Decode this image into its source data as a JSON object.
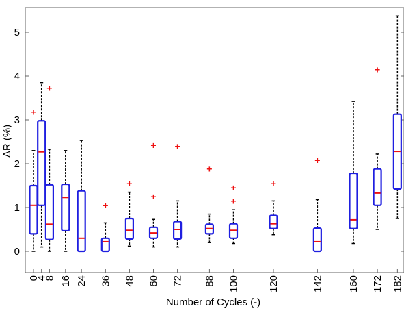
{
  "chart_data": {
    "type": "box",
    "title": "",
    "xlabel": "Number of Cycles (-)",
    "ylabel": "ΔR (%)",
    "ylim": [
      -0.55,
      5.6
    ],
    "yticks": [
      0,
      1,
      2,
      3,
      4,
      5
    ],
    "grid": false,
    "legend": "none",
    "colors": {
      "box": "#1f1fe0",
      "median": "#ee1111",
      "whisker": "#000000",
      "outlier": "#ee1111",
      "axes": "#666666"
    },
    "categories": [
      "0",
      "4",
      "8",
      "16",
      "24",
      "36",
      "48",
      "60",
      "72",
      "88",
      "100",
      "120",
      "142",
      "160",
      "172",
      "182"
    ],
    "boxes": [
      {
        "x": 0,
        "whisker_low": 0.0,
        "q1": 0.4,
        "median": 1.05,
        "q3": 1.5,
        "whisker_high": 2.3,
        "outliers": [
          3.18
        ]
      },
      {
        "x": 4,
        "whisker_low": 0.1,
        "q1": 1.05,
        "median": 2.27,
        "q3": 2.98,
        "whisker_high": 3.85,
        "outliers": []
      },
      {
        "x": 8,
        "whisker_low": 0.0,
        "q1": 0.27,
        "median": 0.62,
        "q3": 1.52,
        "whisker_high": 2.33,
        "outliers": [
          3.73
        ]
      },
      {
        "x": 16,
        "whisker_low": 0.0,
        "q1": 0.47,
        "median": 1.23,
        "q3": 1.53,
        "whisker_high": 2.3,
        "outliers": []
      },
      {
        "x": 24,
        "whisker_low": 0.0,
        "q1": 0.0,
        "median": 0.3,
        "q3": 1.38,
        "whisker_high": 2.53,
        "outliers": []
      },
      {
        "x": 36,
        "whisker_low": 0.0,
        "q1": 0.0,
        "median": 0.22,
        "q3": 0.3,
        "whisker_high": 0.65,
        "outliers": [
          1.05
        ]
      },
      {
        "x": 48,
        "whisker_low": 0.12,
        "q1": 0.28,
        "median": 0.48,
        "q3": 0.75,
        "whisker_high": 1.35,
        "outliers": [
          1.55
        ]
      },
      {
        "x": 60,
        "whisker_low": 0.1,
        "q1": 0.3,
        "median": 0.42,
        "q3": 0.55,
        "whisker_high": 0.73,
        "outliers": [
          1.25,
          2.42
        ]
      },
      {
        "x": 72,
        "whisker_low": 0.1,
        "q1": 0.28,
        "median": 0.5,
        "q3": 0.68,
        "whisker_high": 1.15,
        "outliers": [
          2.4
        ]
      },
      {
        "x": 88,
        "whisker_low": 0.2,
        "q1": 0.4,
        "median": 0.52,
        "q3": 0.62,
        "whisker_high": 0.85,
        "outliers": [
          1.88
        ]
      },
      {
        "x": 100,
        "whisker_low": 0.18,
        "q1": 0.3,
        "median": 0.48,
        "q3": 0.63,
        "whisker_high": 0.95,
        "outliers": [
          1.15,
          1.45
        ]
      },
      {
        "x": 120,
        "whisker_low": 0.38,
        "q1": 0.52,
        "median": 0.63,
        "q3": 0.82,
        "whisker_high": 1.15,
        "outliers": [
          1.55
        ]
      },
      {
        "x": 142,
        "whisker_low": 0.0,
        "q1": 0.0,
        "median": 0.22,
        "q3": 0.53,
        "whisker_high": 1.18,
        "outliers": [
          2.08
        ]
      },
      {
        "x": 160,
        "whisker_low": 0.18,
        "q1": 0.52,
        "median": 0.72,
        "q3": 1.78,
        "whisker_high": 3.42,
        "outliers": []
      },
      {
        "x": 172,
        "whisker_low": 0.5,
        "q1": 1.05,
        "median": 1.33,
        "q3": 1.88,
        "whisker_high": 2.22,
        "outliers": [
          4.15
        ]
      },
      {
        "x": 182,
        "whisker_low": 0.75,
        "q1": 1.42,
        "median": 2.28,
        "q3": 3.13,
        "whisker_high": 5.37,
        "outliers": []
      }
    ]
  }
}
